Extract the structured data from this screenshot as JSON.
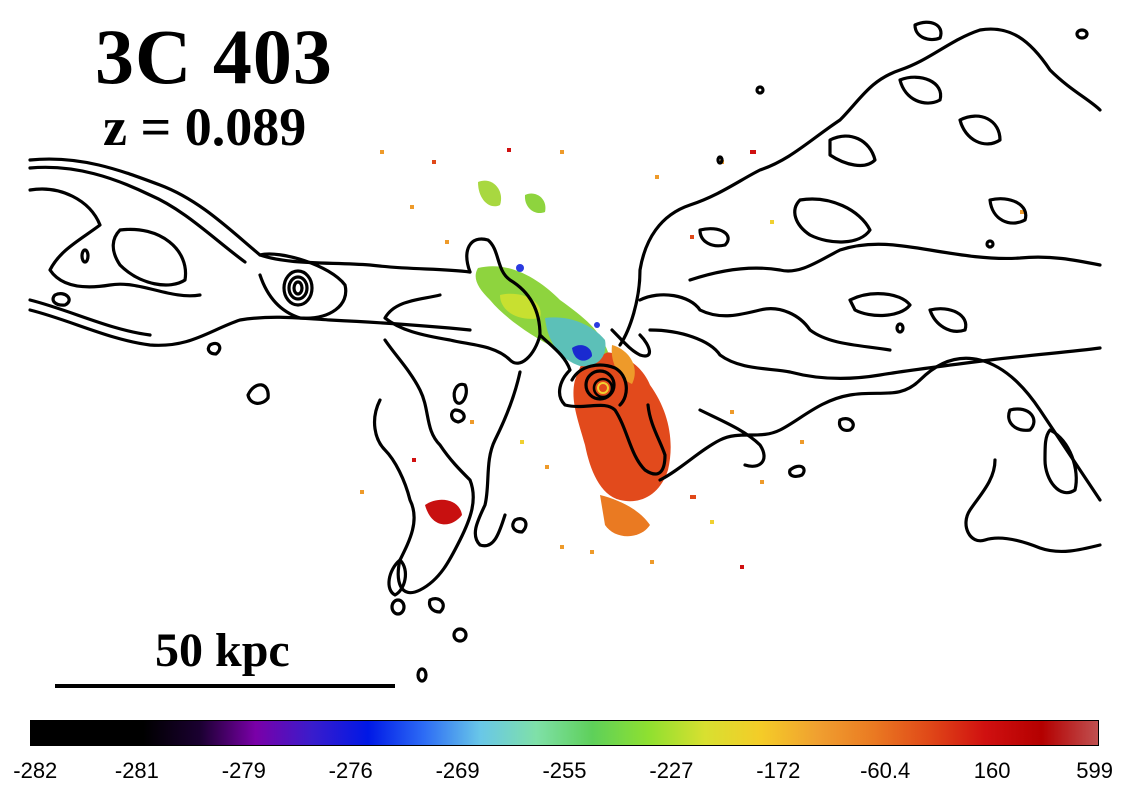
{
  "figure": {
    "object_name": "3C 403",
    "redshift_label": "z = 0.089",
    "scale_bar_label": "50 kpc"
  },
  "colorbar": {
    "tick_labels": [
      "-282",
      "-281",
      "-279",
      "-276",
      "-269",
      "-255",
      "-227",
      "-172",
      "-60.4",
      "160",
      "599"
    ],
    "gradient_colors": [
      "#000000",
      "#000000",
      "#000000",
      "#1a0030",
      "#7a00a8",
      "#3a1ccc",
      "#0018e6",
      "#2d6cf5",
      "#69c7e8",
      "#7fe0a8",
      "#5ed05a",
      "#8fe030",
      "#d8e030",
      "#f4cc28",
      "#f0a030",
      "#ea7a22",
      "#e04818",
      "#d01010",
      "#b40000",
      "#c05050"
    ]
  },
  "colors": {
    "contour": "#000000",
    "emission_red": "#e4401a",
    "emission_orange": "#ee8a2a",
    "emission_yellow": "#f0d030",
    "emission_green": "#8ed43e",
    "emission_cyan": "#5cc8b8",
    "emission_blue": "#1a2ad0"
  }
}
